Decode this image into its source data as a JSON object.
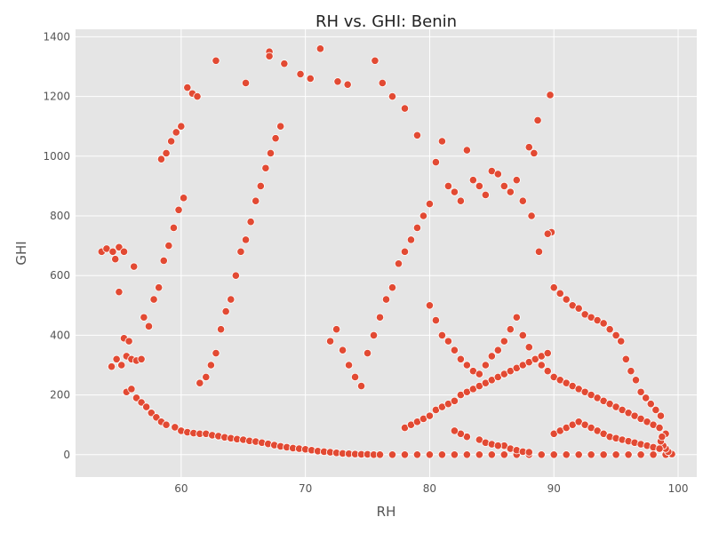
{
  "chart_data": {
    "type": "scatter",
    "title": "RH vs. GHI: Benin",
    "xlabel": "RH",
    "ylabel": "GHI",
    "xlim": [
      51.5,
      101.5
    ],
    "ylim": [
      -75,
      1425
    ],
    "xticks": [
      60,
      70,
      80,
      90,
      100
    ],
    "yticks": [
      0,
      200,
      400,
      600,
      800,
      1000,
      1200,
      1400
    ],
    "grid": true,
    "legend": "none",
    "colors": {
      "background": "#e5e5e5",
      "grid": "#ffffff",
      "marker_fill": "#e24a33",
      "marker_edge": "#ffffff"
    },
    "points": [
      [
        53.6,
        680
      ],
      [
        54.0,
        690
      ],
      [
        54.5,
        680
      ],
      [
        54.7,
        655
      ],
      [
        55.0,
        695
      ],
      [
        55.4,
        680
      ],
      [
        56.2,
        630
      ],
      [
        55.0,
        545
      ],
      [
        54.4,
        295
      ],
      [
        54.8,
        320
      ],
      [
        55.2,
        300
      ],
      [
        55.6,
        330
      ],
      [
        56.0,
        320
      ],
      [
        56.4,
        315
      ],
      [
        56.8,
        320
      ],
      [
        55.4,
        390
      ],
      [
        55.8,
        380
      ],
      [
        55.6,
        210
      ],
      [
        56.0,
        220
      ],
      [
        56.4,
        190
      ],
      [
        56.8,
        175
      ],
      [
        57.2,
        160
      ],
      [
        57.6,
        140
      ],
      [
        58.0,
        125
      ],
      [
        58.4,
        110
      ],
      [
        58.8,
        100
      ],
      [
        57.0,
        460
      ],
      [
        57.4,
        430
      ],
      [
        57.8,
        520
      ],
      [
        58.2,
        560
      ],
      [
        58.6,
        650
      ],
      [
        59.0,
        700
      ],
      [
        59.4,
        760
      ],
      [
        59.8,
        820
      ],
      [
        60.2,
        860
      ],
      [
        58.4,
        990
      ],
      [
        58.8,
        1010
      ],
      [
        59.2,
        1050
      ],
      [
        59.6,
        1080
      ],
      [
        60.0,
        1100
      ],
      [
        60.5,
        1230
      ],
      [
        60.9,
        1210
      ],
      [
        61.3,
        1200
      ],
      [
        59.5,
        92
      ],
      [
        60.0,
        80
      ],
      [
        60.5,
        75
      ],
      [
        61.0,
        72
      ],
      [
        61.5,
        70
      ],
      [
        62.0,
        70
      ],
      [
        62.5,
        65
      ],
      [
        63.0,
        62
      ],
      [
        63.5,
        58
      ],
      [
        64.0,
        55
      ],
      [
        64.5,
        52
      ],
      [
        65.0,
        50
      ],
      [
        65.5,
        46
      ],
      [
        66.0,
        44
      ],
      [
        66.5,
        40
      ],
      [
        67.0,
        36
      ],
      [
        67.5,
        32
      ],
      [
        68.0,
        28
      ],
      [
        68.5,
        25
      ],
      [
        69.0,
        22
      ],
      [
        69.5,
        20
      ],
      [
        70.0,
        18
      ],
      [
        70.5,
        15
      ],
      [
        71.0,
        12
      ],
      [
        71.5,
        10
      ],
      [
        72.0,
        8
      ],
      [
        72.5,
        6
      ],
      [
        73.0,
        4
      ],
      [
        73.5,
        3
      ],
      [
        74.0,
        2
      ],
      [
        74.5,
        1
      ],
      [
        75.0,
        1
      ],
      [
        75.5,
        0
      ],
      [
        76.0,
        0
      ],
      [
        77.0,
        0
      ],
      [
        78.0,
        0
      ],
      [
        79.0,
        0
      ],
      [
        80.0,
        0
      ],
      [
        81.0,
        0
      ],
      [
        82.0,
        0
      ],
      [
        83.0,
        0
      ],
      [
        84.0,
        0
      ],
      [
        85.0,
        0
      ],
      [
        86.0,
        0
      ],
      [
        87.0,
        0
      ],
      [
        88.0,
        0
      ],
      [
        89.0,
        0
      ],
      [
        90.0,
        0
      ],
      [
        91.0,
        0
      ],
      [
        92.0,
        0
      ],
      [
        93.0,
        0
      ],
      [
        94.0,
        0
      ],
      [
        95.0,
        0
      ],
      [
        96.0,
        0
      ],
      [
        97.0,
        0
      ],
      [
        98.0,
        0
      ],
      [
        99.0,
        0
      ],
      [
        99.5,
        2
      ],
      [
        99.2,
        10
      ],
      [
        99.0,
        20
      ],
      [
        98.8,
        30
      ],
      [
        98.6,
        45
      ],
      [
        61.5,
        240
      ],
      [
        62.0,
        260
      ],
      [
        62.4,
        300
      ],
      [
        62.8,
        340
      ],
      [
        63.2,
        420
      ],
      [
        63.6,
        480
      ],
      [
        64.0,
        520
      ],
      [
        64.4,
        600
      ],
      [
        64.8,
        680
      ],
      [
        65.2,
        720
      ],
      [
        65.6,
        780
      ],
      [
        66.0,
        850
      ],
      [
        66.4,
        900
      ],
      [
        66.8,
        960
      ],
      [
        67.2,
        1010
      ],
      [
        67.6,
        1060
      ],
      [
        68.0,
        1100
      ],
      [
        67.1,
        1350
      ],
      [
        67.1,
        1335
      ],
      [
        68.3,
        1310
      ],
      [
        69.6,
        1275
      ],
      [
        70.4,
        1260
      ],
      [
        72.6,
        1250
      ],
      [
        73.4,
        1240
      ],
      [
        71.2,
        1360
      ],
      [
        62.8,
        1320
      ],
      [
        65.2,
        1245
      ],
      [
        75.6,
        1320
      ],
      [
        76.2,
        1245
      ],
      [
        77.0,
        1200
      ],
      [
        78.0,
        1160
      ],
      [
        79.0,
        1070
      ],
      [
        72.0,
        380
      ],
      [
        72.5,
        420
      ],
      [
        73.0,
        350
      ],
      [
        73.5,
        300
      ],
      [
        74.0,
        260
      ],
      [
        74.5,
        230
      ],
      [
        75.0,
        340
      ],
      [
        75.5,
        400
      ],
      [
        76.0,
        460
      ],
      [
        76.5,
        520
      ],
      [
        77.0,
        560
      ],
      [
        77.5,
        640
      ],
      [
        78.0,
        680
      ],
      [
        78.5,
        720
      ],
      [
        79.0,
        760
      ],
      [
        79.5,
        800
      ],
      [
        80.0,
        840
      ],
      [
        80.5,
        980
      ],
      [
        81.0,
        1050
      ],
      [
        81.5,
        900
      ],
      [
        82.0,
        880
      ],
      [
        82.5,
        850
      ],
      [
        83.0,
        1020
      ],
      [
        83.5,
        920
      ],
      [
        84.0,
        900
      ],
      [
        84.5,
        870
      ],
      [
        85.0,
        950
      ],
      [
        85.5,
        940
      ],
      [
        86.0,
        900
      ],
      [
        86.5,
        880
      ],
      [
        87.0,
        920
      ],
      [
        87.5,
        850
      ],
      [
        88.0,
        1030
      ],
      [
        88.4,
        1010
      ],
      [
        88.7,
        1120
      ],
      [
        89.7,
        1205
      ],
      [
        89.8,
        745
      ],
      [
        89.5,
        740
      ],
      [
        88.8,
        680
      ],
      [
        88.2,
        800
      ],
      [
        80.0,
        500
      ],
      [
        80.5,
        450
      ],
      [
        81.0,
        400
      ],
      [
        81.5,
        380
      ],
      [
        82.0,
        350
      ],
      [
        82.5,
        320
      ],
      [
        83.0,
        300
      ],
      [
        83.5,
        280
      ],
      [
        84.0,
        270
      ],
      [
        84.5,
        300
      ],
      [
        85.0,
        330
      ],
      [
        85.5,
        350
      ],
      [
        86.0,
        380
      ],
      [
        86.5,
        420
      ],
      [
        87.0,
        460
      ],
      [
        87.5,
        400
      ],
      [
        88.0,
        360
      ],
      [
        88.5,
        320
      ],
      [
        89.0,
        300
      ],
      [
        89.5,
        280
      ],
      [
        90.0,
        260
      ],
      [
        90.5,
        250
      ],
      [
        91.0,
        240
      ],
      [
        91.5,
        230
      ],
      [
        92.0,
        220
      ],
      [
        92.5,
        210
      ],
      [
        93.0,
        200
      ],
      [
        93.5,
        190
      ],
      [
        94.0,
        180
      ],
      [
        94.5,
        170
      ],
      [
        95.0,
        160
      ],
      [
        95.5,
        150
      ],
      [
        96.0,
        140
      ],
      [
        96.5,
        130
      ],
      [
        97.0,
        120
      ],
      [
        97.5,
        110
      ],
      [
        98.0,
        100
      ],
      [
        98.5,
        90
      ],
      [
        99.0,
        70
      ],
      [
        98.7,
        60
      ],
      [
        90.0,
        560
      ],
      [
        90.5,
        540
      ],
      [
        91.0,
        520
      ],
      [
        91.5,
        500
      ],
      [
        92.0,
        490
      ],
      [
        92.5,
        470
      ],
      [
        93.0,
        460
      ],
      [
        93.5,
        450
      ],
      [
        94.0,
        440
      ],
      [
        94.5,
        420
      ],
      [
        95.0,
        400
      ],
      [
        95.4,
        380
      ],
      [
        95.8,
        320
      ],
      [
        96.2,
        280
      ],
      [
        96.6,
        250
      ],
      [
        97.0,
        210
      ],
      [
        97.4,
        190
      ],
      [
        97.8,
        170
      ],
      [
        98.2,
        150
      ],
      [
        98.6,
        130
      ],
      [
        78.0,
        90
      ],
      [
        78.5,
        100
      ],
      [
        79.0,
        110
      ],
      [
        79.5,
        120
      ],
      [
        80.0,
        130
      ],
      [
        80.5,
        150
      ],
      [
        81.0,
        160
      ],
      [
        81.5,
        170
      ],
      [
        82.0,
        180
      ],
      [
        82.5,
        200
      ],
      [
        83.0,
        210
      ],
      [
        83.5,
        220
      ],
      [
        84.0,
        230
      ],
      [
        84.5,
        240
      ],
      [
        85.0,
        250
      ],
      [
        85.5,
        260
      ],
      [
        86.0,
        270
      ],
      [
        86.5,
        280
      ],
      [
        87.0,
        290
      ],
      [
        87.5,
        300
      ],
      [
        88.0,
        310
      ],
      [
        88.5,
        320
      ],
      [
        89.0,
        330
      ],
      [
        89.5,
        340
      ],
      [
        86.0,
        30
      ],
      [
        86.5,
        20
      ],
      [
        87.0,
        15
      ],
      [
        87.5,
        10
      ],
      [
        88.0,
        8
      ],
      [
        84.0,
        50
      ],
      [
        84.5,
        40
      ],
      [
        85.0,
        35
      ],
      [
        85.5,
        30
      ],
      [
        83.0,
        60
      ],
      [
        82.5,
        70
      ],
      [
        82.0,
        80
      ],
      [
        90.0,
        70
      ],
      [
        90.5,
        80
      ],
      [
        91.0,
        90
      ],
      [
        91.5,
        100
      ],
      [
        92.0,
        110
      ],
      [
        92.5,
        100
      ],
      [
        93.0,
        90
      ],
      [
        93.5,
        80
      ],
      [
        94.0,
        70
      ],
      [
        94.5,
        60
      ],
      [
        95.0,
        55
      ],
      [
        95.5,
        50
      ],
      [
        96.0,
        45
      ],
      [
        96.5,
        40
      ],
      [
        97.0,
        35
      ],
      [
        97.5,
        30
      ],
      [
        98.0,
        25
      ],
      [
        98.5,
        20
      ]
    ]
  }
}
